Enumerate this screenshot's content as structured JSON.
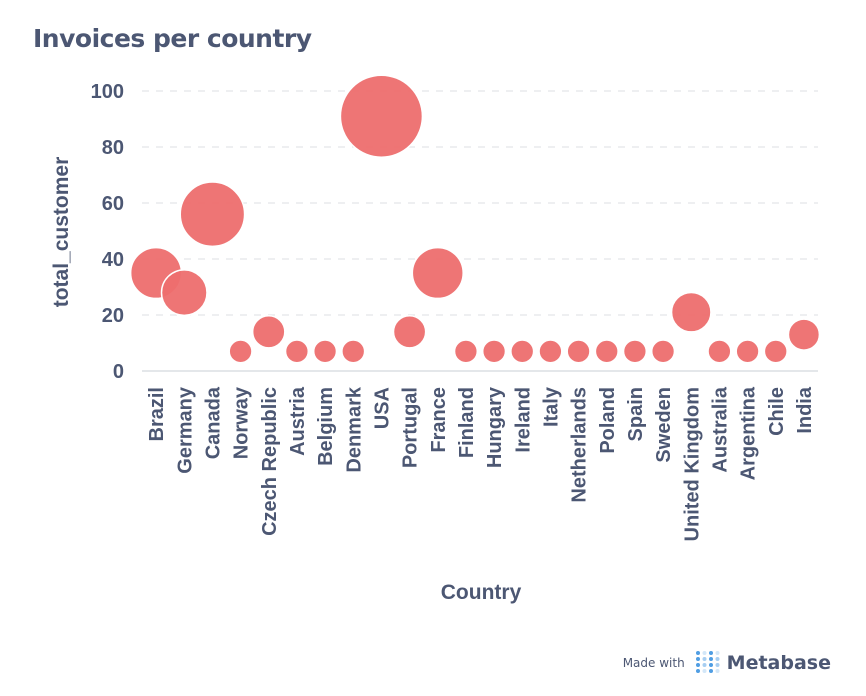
{
  "title": "Invoices per country",
  "footer": {
    "made_with": "Made with",
    "brand": "Metabase"
  },
  "colors": {
    "bubble": "#ed6e6e",
    "grid": "#dcdfe3",
    "axis_text": "#4c5773"
  },
  "chart_data": {
    "type": "scatter",
    "xlabel": "Country",
    "ylabel": "total_customer",
    "ylim": [
      0,
      100
    ],
    "yticks": [
      0,
      20,
      40,
      60,
      80,
      100
    ],
    "grid": true,
    "categories": [
      "Brazil",
      "Germany",
      "Canada",
      "Norway",
      "Czech Republic",
      "Austria",
      "Belgium",
      "Denmark",
      "USA",
      "Portugal",
      "France",
      "Finland",
      "Hungary",
      "Ireland",
      "Italy",
      "Netherlands",
      "Poland",
      "Spain",
      "Sweden",
      "United Kingdom",
      "Australia",
      "Argentina",
      "Chile",
      "India"
    ],
    "values": [
      35,
      28,
      56,
      7,
      14,
      7,
      7,
      7,
      91,
      14,
      35,
      7,
      7,
      7,
      7,
      7,
      7,
      7,
      7,
      21,
      7,
      7,
      7,
      13
    ]
  }
}
